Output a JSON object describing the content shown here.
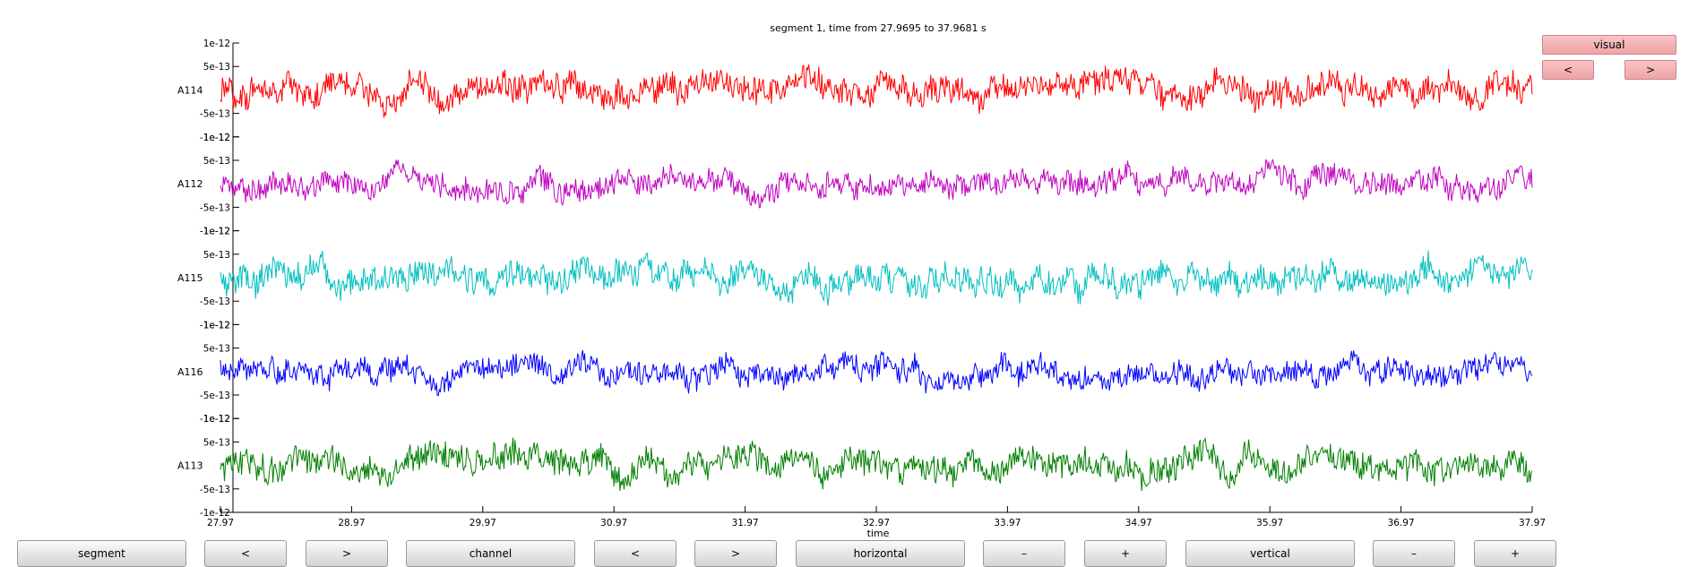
{
  "title": "segment 1, time from 27.9695 to 37.9681 s",
  "xlabel": "time",
  "side_controls": {
    "visual_label": "visual",
    "prev_label": "<",
    "next_label": ">"
  },
  "bottom_controls": {
    "segment_label": "segment",
    "segment_prev": "<",
    "segment_next": ">",
    "channel_label": "channel",
    "channel_prev": "<",
    "channel_next": ">",
    "horizontal_label": "horizontal",
    "horizontal_minus": "–",
    "horizontal_plus": "+",
    "vertical_label": "vertical",
    "vertical_minus": "–",
    "vertical_plus": "+"
  },
  "chart_data": {
    "type": "line",
    "x_ticks": [
      "27.97",
      "28.97",
      "29.97",
      "30.97",
      "31.97",
      "32.97",
      "33.97",
      "34.97",
      "35.97",
      "36.97",
      "37.97"
    ],
    "xlim": [
      27.9695,
      37.9681
    ],
    "y_tick_labels": [
      "1e-12",
      "5e-13",
      "-5e-13",
      "-1e-12"
    ],
    "ylim": [
      -1e-12,
      1e-12
    ],
    "series": [
      {
        "name": "A114",
        "color": "#ff0000",
        "y_range_approx": [
          -7e-13,
          7e-13
        ]
      },
      {
        "name": "A112",
        "color": "#bf00bf",
        "y_range_approx": [
          -6e-13,
          6e-13
        ]
      },
      {
        "name": "A115",
        "color": "#00bfbf",
        "y_range_approx": [
          -7e-13,
          7e-13
        ]
      },
      {
        "name": "A116",
        "color": "#0000ff",
        "y_range_approx": [
          -6e-13,
          6e-13
        ]
      },
      {
        "name": "A113",
        "color": "#007f00",
        "y_range_approx": [
          -7e-13,
          7e-13
        ]
      }
    ]
  }
}
